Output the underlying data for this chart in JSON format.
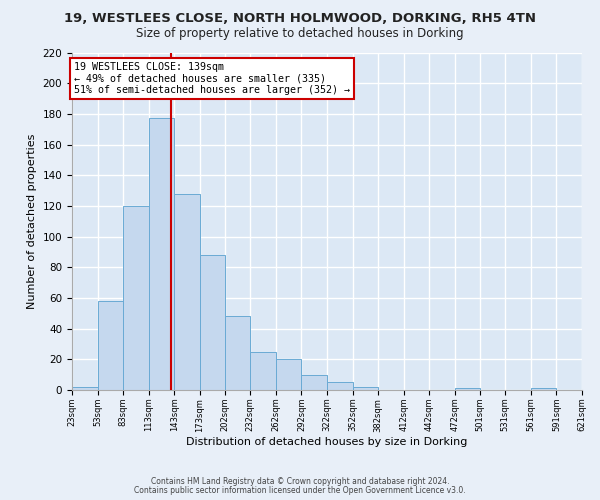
{
  "title": "19, WESTLEES CLOSE, NORTH HOLMWOOD, DORKING, RH5 4TN",
  "subtitle": "Size of property relative to detached houses in Dorking",
  "xlabel": "Distribution of detached houses by size in Dorking",
  "ylabel": "Number of detached properties",
  "bar_edges": [
    23,
    53,
    83,
    113,
    143,
    173,
    202,
    232,
    262,
    292,
    322,
    352,
    382,
    412,
    442,
    472,
    501,
    531,
    561,
    591,
    621
  ],
  "bar_heights": [
    2,
    58,
    120,
    177,
    128,
    88,
    48,
    25,
    20,
    10,
    5,
    2,
    0,
    0,
    0,
    1,
    0,
    0,
    1,
    0,
    1
  ],
  "bar_color": "#c5d8ee",
  "bar_edge_color": "#6aaad4",
  "vline_x": 139,
  "vline_color": "#cc0000",
  "annotation_text": "19 WESTLEES CLOSE: 139sqm\n← 49% of detached houses are smaller (335)\n51% of semi-detached houses are larger (352) →",
  "annotation_box_color": "#ffffff",
  "annotation_box_edge": "#cc0000",
  "ylim": [
    0,
    220
  ],
  "yticks": [
    0,
    20,
    40,
    60,
    80,
    100,
    120,
    140,
    160,
    180,
    200,
    220
  ],
  "tick_labels": [
    "23sqm",
    "53sqm",
    "83sqm",
    "113sqm",
    "143sqm",
    "173sqm",
    "202sqm",
    "232sqm",
    "262sqm",
    "292sqm",
    "322sqm",
    "352sqm",
    "382sqm",
    "412sqm",
    "442sqm",
    "472sqm",
    "501sqm",
    "531sqm",
    "561sqm",
    "591sqm",
    "621sqm"
  ],
  "footer1": "Contains HM Land Registry data © Crown copyright and database right 2024.",
  "footer2": "Contains public sector information licensed under the Open Government Licence v3.0.",
  "bg_color": "#e8eff8",
  "plot_bg_color": "#dce8f5",
  "grid_color": "#ffffff",
  "figsize": [
    6.0,
    5.0
  ],
  "dpi": 100
}
